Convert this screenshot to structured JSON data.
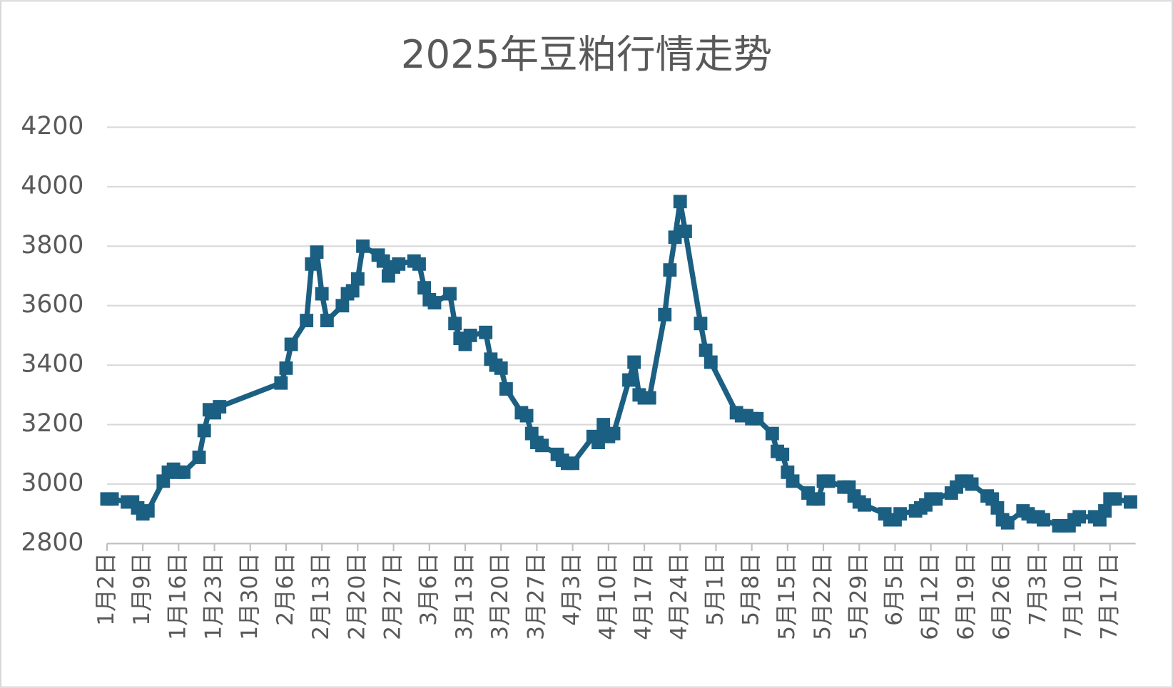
{
  "chart_data": {
    "type": "line",
    "title": "2025年豆粕行情走势",
    "x": [
      "1月2日",
      "1月3日",
      "1月6日",
      "1月7日",
      "1月8日",
      "1月9日",
      "1月10日",
      "1月13日",
      "1月14日",
      "1月15日",
      "1月16日",
      "1月17日",
      "1月20日",
      "1月21日",
      "1月22日",
      "1月23日",
      "1月24日",
      "2月5日",
      "2月6日",
      "2月7日",
      "2月10日",
      "2月11日",
      "2月12日",
      "2月13日",
      "2月14日",
      "2月17日",
      "2月18日",
      "2月19日",
      "2月20日",
      "2月21日",
      "2月24日",
      "2月25日",
      "2月26日",
      "2月27日",
      "2月28日",
      "3月3日",
      "3月4日",
      "3月5日",
      "3月6日",
      "3月7日",
      "3月10日",
      "3月11日",
      "3月12日",
      "3月13日",
      "3月14日",
      "3月17日",
      "3月18日",
      "3月19日",
      "3月20日",
      "3月21日",
      "3月24日",
      "3月25日",
      "3月26日",
      "3月27日",
      "3月28日",
      "3月31日",
      "4月1日",
      "4月2日",
      "4月3日",
      "4月7日",
      "4月8日",
      "4月9日",
      "4月10日",
      "4月11日",
      "4月14日",
      "4月15日",
      "4月16日",
      "4月17日",
      "4月18日",
      "4月21日",
      "4月22日",
      "4月23日",
      "4月24日",
      "4月25日",
      "4月28日",
      "4月29日",
      "4月30日",
      "5月5日",
      "5月6日",
      "5月7日",
      "5月8日",
      "5月9日",
      "5月12日",
      "5月13日",
      "5月14日",
      "5月15日",
      "5月16日",
      "5月19日",
      "5月20日",
      "5月21日",
      "5月22日",
      "5月23日",
      "5月26日",
      "5月27日",
      "5月28日",
      "5月29日",
      "5月30日",
      "6月3日",
      "6月4日",
      "6月5日",
      "6月6日",
      "6月9日",
      "6月10日",
      "6月11日",
      "6月12日",
      "6月13日",
      "6月16日",
      "6月17日",
      "6月18日",
      "6月19日",
      "6月20日",
      "6月23日",
      "6月24日",
      "6月25日",
      "6月26日",
      "6月27日",
      "6月30日",
      "7月1日",
      "7月2日",
      "7月3日",
      "7月4日",
      "7月7日",
      "7月8日",
      "7月9日",
      "7月10日",
      "7月11日",
      "7月14日",
      "7月15日",
      "7月16日",
      "7月17日",
      "7月18日",
      "7月21日"
    ],
    "series": [
      {
        "name": "豆粕",
        "color": "#1b5f82",
        "values": [
          2950,
          2950,
          2940,
          2940,
          2920,
          2900,
          2910,
          3010,
          3040,
          3050,
          3040,
          3040,
          3090,
          3180,
          3250,
          3240,
          3260,
          3340,
          3390,
          3470,
          3550,
          3740,
          3780,
          3640,
          3550,
          3600,
          3640,
          3650,
          3690,
          3800,
          3770,
          3750,
          3700,
          3730,
          3740,
          3750,
          3740,
          3660,
          3620,
          3610,
          3640,
          3540,
          3490,
          3470,
          3500,
          3510,
          3420,
          3400,
          3390,
          3320,
          3240,
          3230,
          3170,
          3140,
          3130,
          3100,
          3080,
          3070,
          3070,
          3160,
          3140,
          3200,
          3160,
          3170,
          3350,
          3410,
          3300,
          3290,
          3290,
          3570,
          3720,
          3830,
          3950,
          3850,
          3540,
          3450,
          3410,
          3240,
          3230,
          3230,
          3220,
          3220,
          3170,
          3110,
          3100,
          3040,
          3010,
          2970,
          2950,
          2950,
          3010,
          3010,
          2990,
          2990,
          2960,
          2940,
          2930,
          2900,
          2880,
          2880,
          2900,
          2910,
          2920,
          2930,
          2950,
          2950,
          2970,
          2990,
          3010,
          3010,
          3000,
          2960,
          2950,
          2920,
          2880,
          2870,
          2910,
          2900,
          2890,
          2890,
          2880,
          2860,
          2860,
          2860,
          2880,
          2890,
          2890,
          2880,
          2910,
          2950,
          2950,
          2940
        ]
      }
    ],
    "xlim": [
      "1月2日",
      "7月22日"
    ],
    "xticks": [
      "1月2日",
      "1月9日",
      "1月16日",
      "1月23日",
      "1月30日",
      "2月6日",
      "2月13日",
      "2月20日",
      "2月27日",
      "3月6日",
      "3月13日",
      "3月20日",
      "3月27日",
      "4月3日",
      "4月10日",
      "4月17日",
      "4月24日",
      "5月1日",
      "5月8日",
      "5月15日",
      "5月22日",
      "5月29日",
      "6月5日",
      "6月12日",
      "6月19日",
      "6月26日",
      "7月3日",
      "7月10日",
      "7月17日"
    ],
    "ylim": [
      2800,
      4200
    ],
    "yticks": [
      2800,
      3000,
      3200,
      3400,
      3600,
      3800,
      4000,
      4200
    ],
    "grid": true,
    "legend": false
  }
}
